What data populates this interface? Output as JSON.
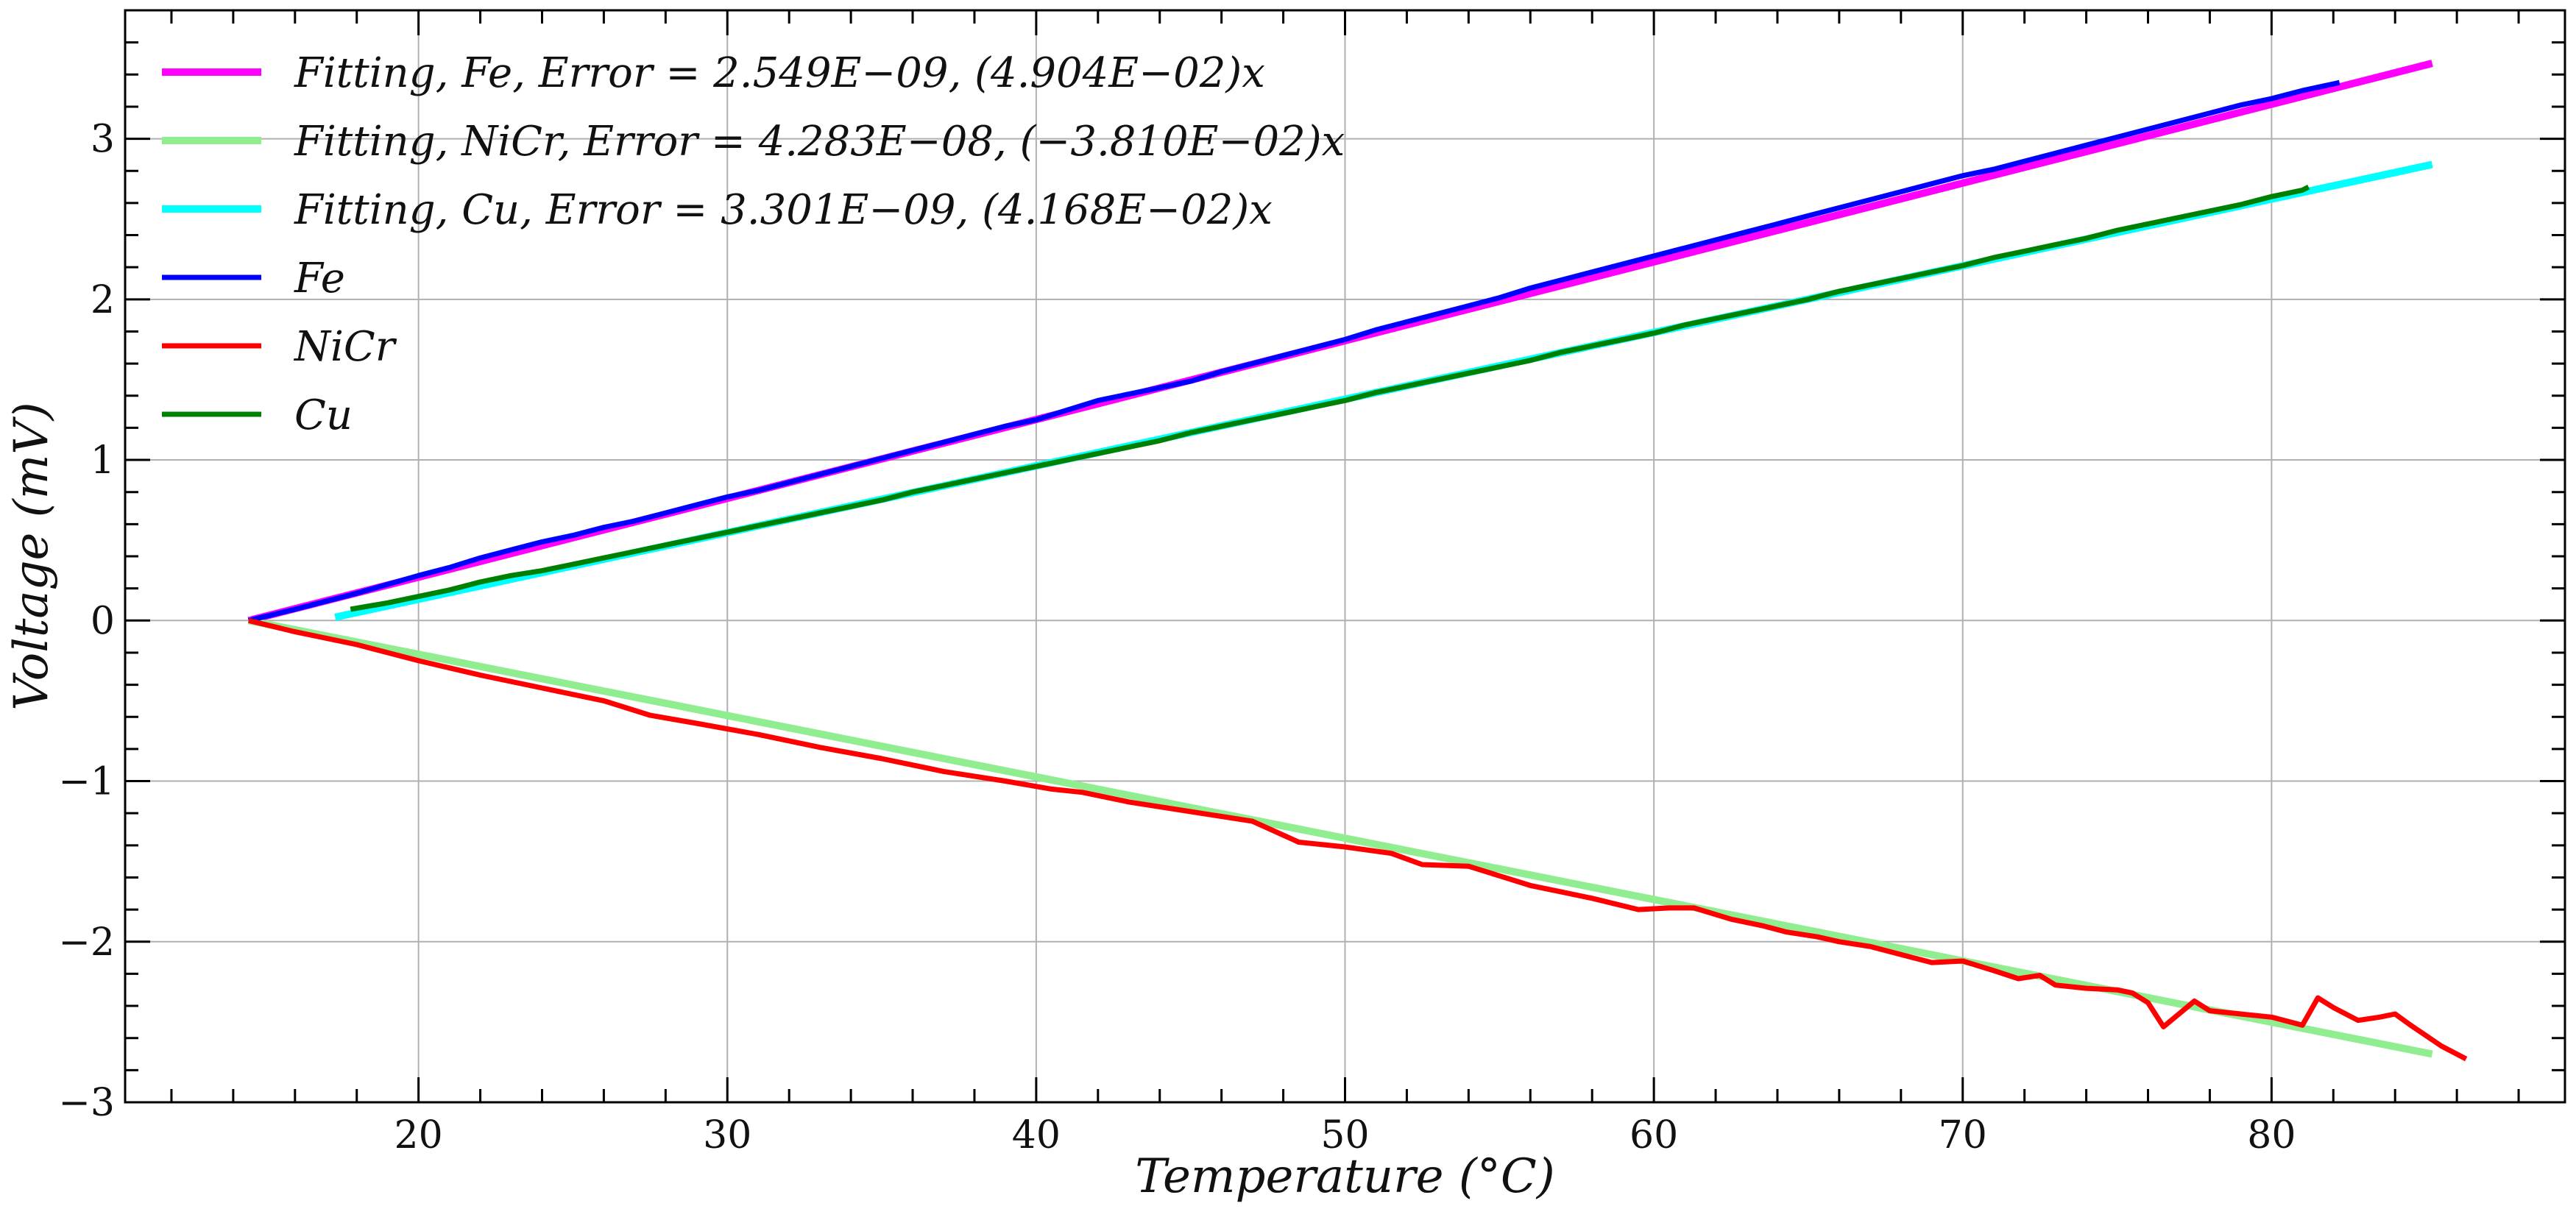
{
  "chart_data": {
    "type": "line",
    "xlabel": "Temperature (°C)",
    "ylabel": "Voltage (mV)",
    "xlim": [
      10.5,
      89.5
    ],
    "ylim": [
      -3.0,
      3.8
    ],
    "x_ticks": [
      20,
      30,
      40,
      50,
      60,
      70,
      80
    ],
    "y_ticks": [
      -3,
      -2,
      -1,
      0,
      1,
      2,
      3
    ],
    "x_tick_labels": [
      "20",
      "30",
      "40",
      "50",
      "60",
      "70",
      "80"
    ],
    "y_tick_labels": [
      "−3",
      "−2",
      "−1",
      "0",
      "1",
      "2",
      "3"
    ],
    "grid": true,
    "legend_position": "upper-left",
    "series": [
      {
        "name": "Fitting, Fe, Error = 2.549E−09, (4.904E−02)x",
        "kind": "fit",
        "color": "#ff00ff",
        "x": [
          14.5,
          85.2
        ],
        "y": [
          0.0,
          3.47
        ]
      },
      {
        "name": "Fitting, NiCr, Error = 4.283E−08, (−3.810E−02)x",
        "kind": "fit",
        "color": "#90ee90",
        "x": [
          14.5,
          85.2
        ],
        "y": [
          0.0,
          -2.7
        ]
      },
      {
        "name": "Fitting, Cu, Error = 3.301E−09, (4.168E−02)x",
        "kind": "fit",
        "color": "#00ffff",
        "x": [
          17.3,
          85.2
        ],
        "y": [
          0.02,
          2.84
        ]
      },
      {
        "name": "Fe",
        "kind": "data",
        "color": "#0000ff",
        "x": [
          14.5,
          16,
          18,
          20,
          21,
          22,
          23,
          24,
          25,
          26,
          27,
          28,
          29,
          30,
          31,
          32,
          33,
          34,
          35,
          36,
          37,
          38,
          39,
          40,
          41,
          42,
          43,
          44,
          45,
          46,
          47,
          48,
          49,
          50,
          51,
          52,
          53,
          54,
          55,
          56,
          57,
          58,
          59,
          60,
          61,
          62,
          63,
          64,
          65,
          66,
          67,
          68,
          69,
          70,
          71,
          72,
          73,
          74,
          75,
          76,
          77,
          78,
          79,
          80,
          81,
          82.2
        ],
        "y": [
          0.0,
          0.07,
          0.17,
          0.28,
          0.33,
          0.39,
          0.44,
          0.49,
          0.53,
          0.58,
          0.62,
          0.67,
          0.72,
          0.77,
          0.81,
          0.86,
          0.91,
          0.96,
          1.01,
          1.06,
          1.11,
          1.16,
          1.21,
          1.25,
          1.31,
          1.37,
          1.41,
          1.45,
          1.49,
          1.55,
          1.6,
          1.65,
          1.7,
          1.75,
          1.81,
          1.86,
          1.91,
          1.96,
          2.01,
          2.07,
          2.12,
          2.17,
          2.22,
          2.27,
          2.32,
          2.37,
          2.42,
          2.47,
          2.52,
          2.57,
          2.62,
          2.67,
          2.72,
          2.77,
          2.81,
          2.86,
          2.91,
          2.96,
          3.01,
          3.06,
          3.11,
          3.16,
          3.21,
          3.25,
          3.3,
          3.35
        ]
      },
      {
        "name": "NiCr",
        "kind": "data",
        "color": "#ff0000",
        "x": [
          14.5,
          16,
          18,
          20,
          22,
          24,
          26,
          27.5,
          29,
          31,
          33,
          35,
          37,
          39,
          40.5,
          41.5,
          43,
          45,
          47,
          48.5,
          50,
          51.5,
          52.5,
          54,
          55,
          56,
          57,
          58,
          59.5,
          60.5,
          61.3,
          62.5,
          63.5,
          64.3,
          65.3,
          66,
          67,
          68,
          69,
          70,
          71,
          71.8,
          72.5,
          73,
          74,
          75,
          75.5,
          76,
          76.5,
          77,
          77.5,
          78,
          79,
          80,
          81,
          81.5,
          82,
          82.8,
          83.5,
          84,
          84.5,
          85.5,
          86.3
        ],
        "y": [
          0.0,
          -0.07,
          -0.15,
          -0.25,
          -0.34,
          -0.42,
          -0.5,
          -0.59,
          -0.64,
          -0.71,
          -0.79,
          -0.86,
          -0.94,
          -1.0,
          -1.05,
          -1.07,
          -1.13,
          -1.19,
          -1.25,
          -1.38,
          -1.41,
          -1.45,
          -1.52,
          -1.53,
          -1.59,
          -1.65,
          -1.69,
          -1.73,
          -1.8,
          -1.79,
          -1.79,
          -1.86,
          -1.9,
          -1.94,
          -1.97,
          -2.0,
          -2.03,
          -2.08,
          -2.13,
          -2.12,
          -2.18,
          -2.23,
          -2.21,
          -2.27,
          -2.29,
          -2.3,
          -2.32,
          -2.38,
          -2.53,
          -2.45,
          -2.37,
          -2.43,
          -2.45,
          -2.47,
          -2.52,
          -2.35,
          -2.41,
          -2.49,
          -2.47,
          -2.45,
          -2.52,
          -2.65,
          -2.73
        ]
      },
      {
        "name": "Cu",
        "kind": "data",
        "color": "#008000",
        "x": [
          17.8,
          19,
          20,
          21,
          22,
          23,
          24,
          25,
          26,
          27,
          28,
          29,
          30,
          31,
          32,
          33,
          34,
          35,
          36,
          37,
          38,
          39,
          40,
          41,
          42,
          43,
          44,
          45,
          46,
          47,
          48,
          49,
          50,
          51,
          52,
          53,
          54,
          55,
          56,
          57,
          58,
          59,
          60,
          61,
          62,
          63,
          64,
          65,
          66,
          67,
          68,
          69,
          70,
          71,
          72,
          73,
          74,
          75,
          76,
          77,
          78,
          79,
          80,
          81,
          81.2
        ],
        "y": [
          0.07,
          0.11,
          0.15,
          0.19,
          0.24,
          0.28,
          0.31,
          0.35,
          0.39,
          0.43,
          0.47,
          0.51,
          0.55,
          0.59,
          0.63,
          0.67,
          0.71,
          0.75,
          0.8,
          0.84,
          0.88,
          0.92,
          0.96,
          1.0,
          1.04,
          1.08,
          1.12,
          1.17,
          1.21,
          1.25,
          1.29,
          1.33,
          1.37,
          1.42,
          1.46,
          1.5,
          1.54,
          1.58,
          1.62,
          1.67,
          1.71,
          1.75,
          1.79,
          1.84,
          1.88,
          1.92,
          1.96,
          2.0,
          2.05,
          2.09,
          2.13,
          2.17,
          2.21,
          2.26,
          2.3,
          2.34,
          2.38,
          2.43,
          2.47,
          2.51,
          2.55,
          2.59,
          2.64,
          2.68,
          2.7
        ]
      }
    ],
    "legend": [
      {
        "series_index": 0,
        "label_parts": [
          "Fitting, Fe, Error = 2.549E−09, (4.904E−02)x"
        ]
      },
      {
        "series_index": 1,
        "label_parts": [
          "Fitting, NiCr, Error = 4.283E−08, (−3.810E−02)x"
        ]
      },
      {
        "series_index": 2,
        "label_parts": [
          "Fitting, Cu, Error = 3.301E−09, (4.168E−02)x"
        ]
      },
      {
        "series_index": 3,
        "label_parts": [
          "Fe"
        ]
      },
      {
        "series_index": 4,
        "label_parts": [
          "NiCr"
        ]
      },
      {
        "series_index": 5,
        "label_parts": [
          "Cu"
        ]
      }
    ]
  }
}
